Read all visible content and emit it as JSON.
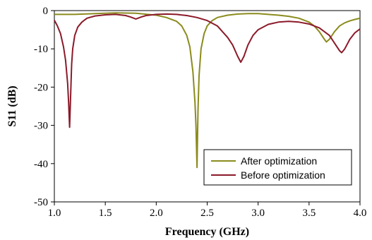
{
  "chart_data": {
    "type": "line",
    "title": "",
    "xlabel": "Frequency (GHz)",
    "ylabel": "S11 (dB)",
    "xlim": [
      1.0,
      4.0
    ],
    "ylim": [
      -50,
      0
    ],
    "xticks": [
      1.0,
      1.5,
      2.0,
      2.5,
      3.0,
      3.5,
      4.0
    ],
    "xtick_labels": [
      "1.0",
      "1.5",
      "2.0",
      "2.5",
      "3.0",
      "3.5",
      "4.0"
    ],
    "yticks": [
      0,
      -10,
      -20,
      -30,
      -40,
      -50
    ],
    "ytick_labels": [
      "0",
      "-10",
      "-20",
      "-30",
      "-40",
      "-50"
    ],
    "grid": false,
    "legend": "bottom-right",
    "series": [
      {
        "name": "After optimization",
        "color": "#8b8b1e",
        "x": [
          1.0,
          1.2,
          1.4,
          1.6,
          1.8,
          2.0,
          2.1,
          2.2,
          2.25,
          2.3,
          2.33,
          2.36,
          2.38,
          2.39,
          2.4,
          2.41,
          2.42,
          2.44,
          2.47,
          2.5,
          2.55,
          2.6,
          2.7,
          2.8,
          2.9,
          3.0,
          3.1,
          3.2,
          3.3,
          3.4,
          3.5,
          3.55,
          3.6,
          3.65,
          3.67,
          3.7,
          3.75,
          3.8,
          3.85,
          3.9,
          3.95,
          4.0
        ],
        "y": [
          -1.0,
          -1.0,
          -0.8,
          -0.6,
          -0.7,
          -1.2,
          -1.8,
          -2.8,
          -4.0,
          -6.5,
          -9.5,
          -16.0,
          -24.0,
          -30.0,
          -41.0,
          -26.0,
          -17.0,
          -10.0,
          -6.0,
          -4.0,
          -2.6,
          -1.8,
          -1.2,
          -0.9,
          -0.8,
          -0.8,
          -1.0,
          -1.2,
          -1.5,
          -2.0,
          -3.0,
          -4.0,
          -5.5,
          -7.5,
          -8.2,
          -7.5,
          -5.5,
          -4.0,
          -3.2,
          -2.7,
          -2.3,
          -2.0
        ]
      },
      {
        "name": "Before optimization",
        "color": "#8b1a2a",
        "x": [
          1.0,
          1.03,
          1.06,
          1.09,
          1.11,
          1.13,
          1.14,
          1.15,
          1.16,
          1.17,
          1.18,
          1.2,
          1.23,
          1.27,
          1.32,
          1.4,
          1.5,
          1.6,
          1.7,
          1.75,
          1.8,
          1.85,
          1.9,
          2.0,
          2.1,
          2.2,
          2.3,
          2.4,
          2.5,
          2.6,
          2.65,
          2.7,
          2.75,
          2.8,
          2.83,
          2.86,
          2.9,
          2.95,
          3.0,
          3.1,
          3.2,
          3.3,
          3.4,
          3.5,
          3.6,
          3.7,
          3.75,
          3.8,
          3.82,
          3.85,
          3.9,
          3.95,
          4.0
        ],
        "y": [
          -2.5,
          -4.0,
          -6.0,
          -9.5,
          -13.0,
          -19.0,
          -24.0,
          -30.5,
          -22.0,
          -14.0,
          -10.0,
          -6.5,
          -4.3,
          -3.0,
          -2.0,
          -1.4,
          -1.1,
          -1.0,
          -1.3,
          -1.7,
          -2.2,
          -1.7,
          -1.3,
          -1.0,
          -0.9,
          -1.0,
          -1.3,
          -1.8,
          -2.6,
          -4.0,
          -5.5,
          -7.0,
          -9.0,
          -12.0,
          -13.5,
          -12.0,
          -9.0,
          -6.5,
          -5.0,
          -3.6,
          -3.0,
          -2.8,
          -3.0,
          -3.5,
          -4.5,
          -6.5,
          -8.5,
          -10.5,
          -11.0,
          -10.0,
          -7.5,
          -5.8,
          -4.8
        ]
      }
    ]
  }
}
